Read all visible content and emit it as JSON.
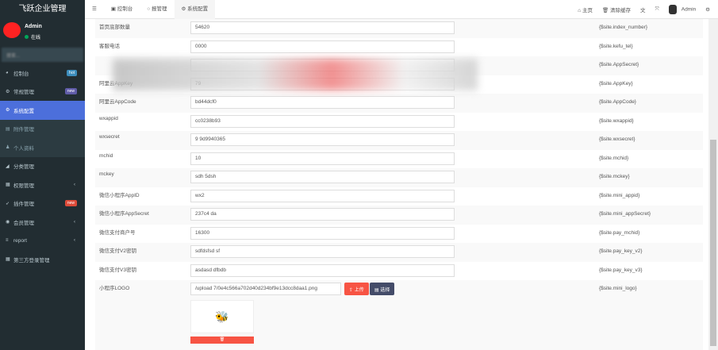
{
  "app": {
    "title": "飞跃企业管理"
  },
  "user": {
    "name": "Admin",
    "status": "在线"
  },
  "search": {
    "placeholder": "搜索..."
  },
  "sidebar": {
    "items": [
      {
        "label": "控制台",
        "icon": "dashboard-icon",
        "badge": "hot",
        "badge_color": "#3c8dbc"
      },
      {
        "label": "常规管理",
        "icon": "cogs-icon",
        "badge": "new",
        "badge_color": "#605ca8"
      },
      {
        "label": "系统配置",
        "icon": "gear-icon",
        "active": true
      },
      {
        "label": "附件管理",
        "icon": "file-image-icon",
        "sub": true
      },
      {
        "label": "个人资料",
        "icon": "user-icon",
        "sub": true
      },
      {
        "label": "分类管理",
        "icon": "leaf-icon"
      },
      {
        "label": "权限管理",
        "icon": "group-icon",
        "chevron": "‹"
      },
      {
        "label": "插件管理",
        "icon": "rocket-icon",
        "badge": "new",
        "badge_color": "#dd4b39"
      },
      {
        "label": "会员管理",
        "icon": "user-circle-icon",
        "chevron": "‹"
      },
      {
        "label": "report",
        "icon": "list-icon",
        "chevron": "‹"
      },
      {
        "label": "第三方登录管理",
        "icon": "group-icon"
      }
    ]
  },
  "topbar": {
    "tabs": [
      {
        "label": "控制台"
      },
      {
        "label": "报管理"
      },
      {
        "label": "系统配置",
        "active": true
      }
    ],
    "home": "主页",
    "clear_cache": "清除缓存",
    "admin": "Admin"
  },
  "config": {
    "rows": [
      {
        "label": "首页底部数量",
        "value": "54620",
        "var": "{$site.index_number}"
      },
      {
        "label": "客服电话",
        "value": "      0000",
        "var": "{$site.kefu_tel}"
      },
      {
        "label": "",
        "value": "",
        "var": "{$site.AppSecret}"
      },
      {
        "label": "阿里云AppKey",
        "value": "      79",
        "var": "{$site.AppKey}"
      },
      {
        "label": "阿里云AppCode",
        "value": "        bd44dcf0",
        "var": "{$site.AppCode}"
      },
      {
        "label": "wxappid",
        "value": "        cc0238b93",
        "var": "{$site.wxappid}"
      },
      {
        "label": "wxsecret",
        "value": "9        9d9940365",
        "var": "{$site.wxsecret}"
      },
      {
        "label": "mchid",
        "value": "10",
        "var": "{$site.mchid}"
      },
      {
        "label": "mckey",
        "value": "sdh        5dsh",
        "var": "{$site.mckey}"
      },
      {
        "label": "微信小程序AppID",
        "value": "wx2",
        "var": "{$site.mini_appid}"
      },
      {
        "label": "微信小程序AppSecret",
        "value": "237c4        da",
        "var": "{$site.mini_appSecret}"
      },
      {
        "label": "微信支付商户号",
        "value": "16300",
        "var": "{$site.pay_mchid}"
      },
      {
        "label": "微信支付V2密钥",
        "value": "sdfdsfsd        sf",
        "var": "{$site.pay_key_v2}"
      },
      {
        "label": "微信支付V3密钥",
        "value": "asdasd        dfbdb",
        "var": "{$site.pay_key_v3}"
      }
    ],
    "logo": {
      "label": "小程序LOGO",
      "value": "/upload        7/0e4c566a702d40d234bf9e13dcc8daa1.png",
      "var": "{$site.mini_logo}",
      "upload": "上传",
      "choose": "选择",
      "delete": "🗑"
    }
  }
}
